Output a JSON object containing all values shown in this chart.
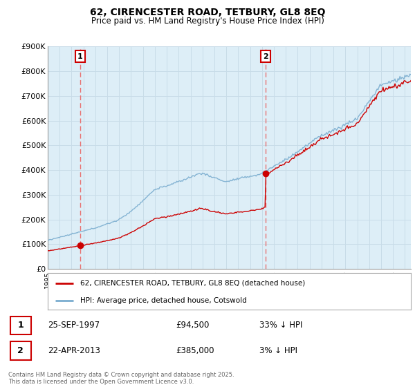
{
  "title": "62, CIRENCESTER ROAD, TETBURY, GL8 8EQ",
  "subtitle": "Price paid vs. HM Land Registry's House Price Index (HPI)",
  "ylim": [
    0,
    900000
  ],
  "xlim_start": 1995.0,
  "xlim_end": 2025.5,
  "yticks": [
    0,
    100000,
    200000,
    300000,
    400000,
    500000,
    600000,
    700000,
    800000,
    900000
  ],
  "ytick_labels": [
    "£0",
    "£100K",
    "£200K",
    "£300K",
    "£400K",
    "£500K",
    "£600K",
    "£700K",
    "£800K",
    "£900K"
  ],
  "sale1_date": 1997.73,
  "sale1_price": 94500,
  "sale1_label": "1",
  "sale2_date": 2013.31,
  "sale2_price": 385000,
  "sale2_label": "2",
  "legend_line1": "62, CIRENCESTER ROAD, TETBURY, GL8 8EQ (detached house)",
  "legend_line2": "HPI: Average price, detached house, Cotswold",
  "table_row1": [
    "1",
    "25-SEP-1997",
    "£94,500",
    "33% ↓ HPI"
  ],
  "table_row2": [
    "2",
    "22-APR-2013",
    "£385,000",
    "3% ↓ HPI"
  ],
  "footnote": "Contains HM Land Registry data © Crown copyright and database right 2025.\nThis data is licensed under the Open Government Licence v3.0.",
  "red_color": "#cc0000",
  "blue_color": "#7aadcf",
  "blue_fill": "#ddeef7",
  "vline_color": "#e87070",
  "background_color": "#ffffff",
  "plot_bg_color": "#ddeef7",
  "grid_color": "#c8dce8"
}
